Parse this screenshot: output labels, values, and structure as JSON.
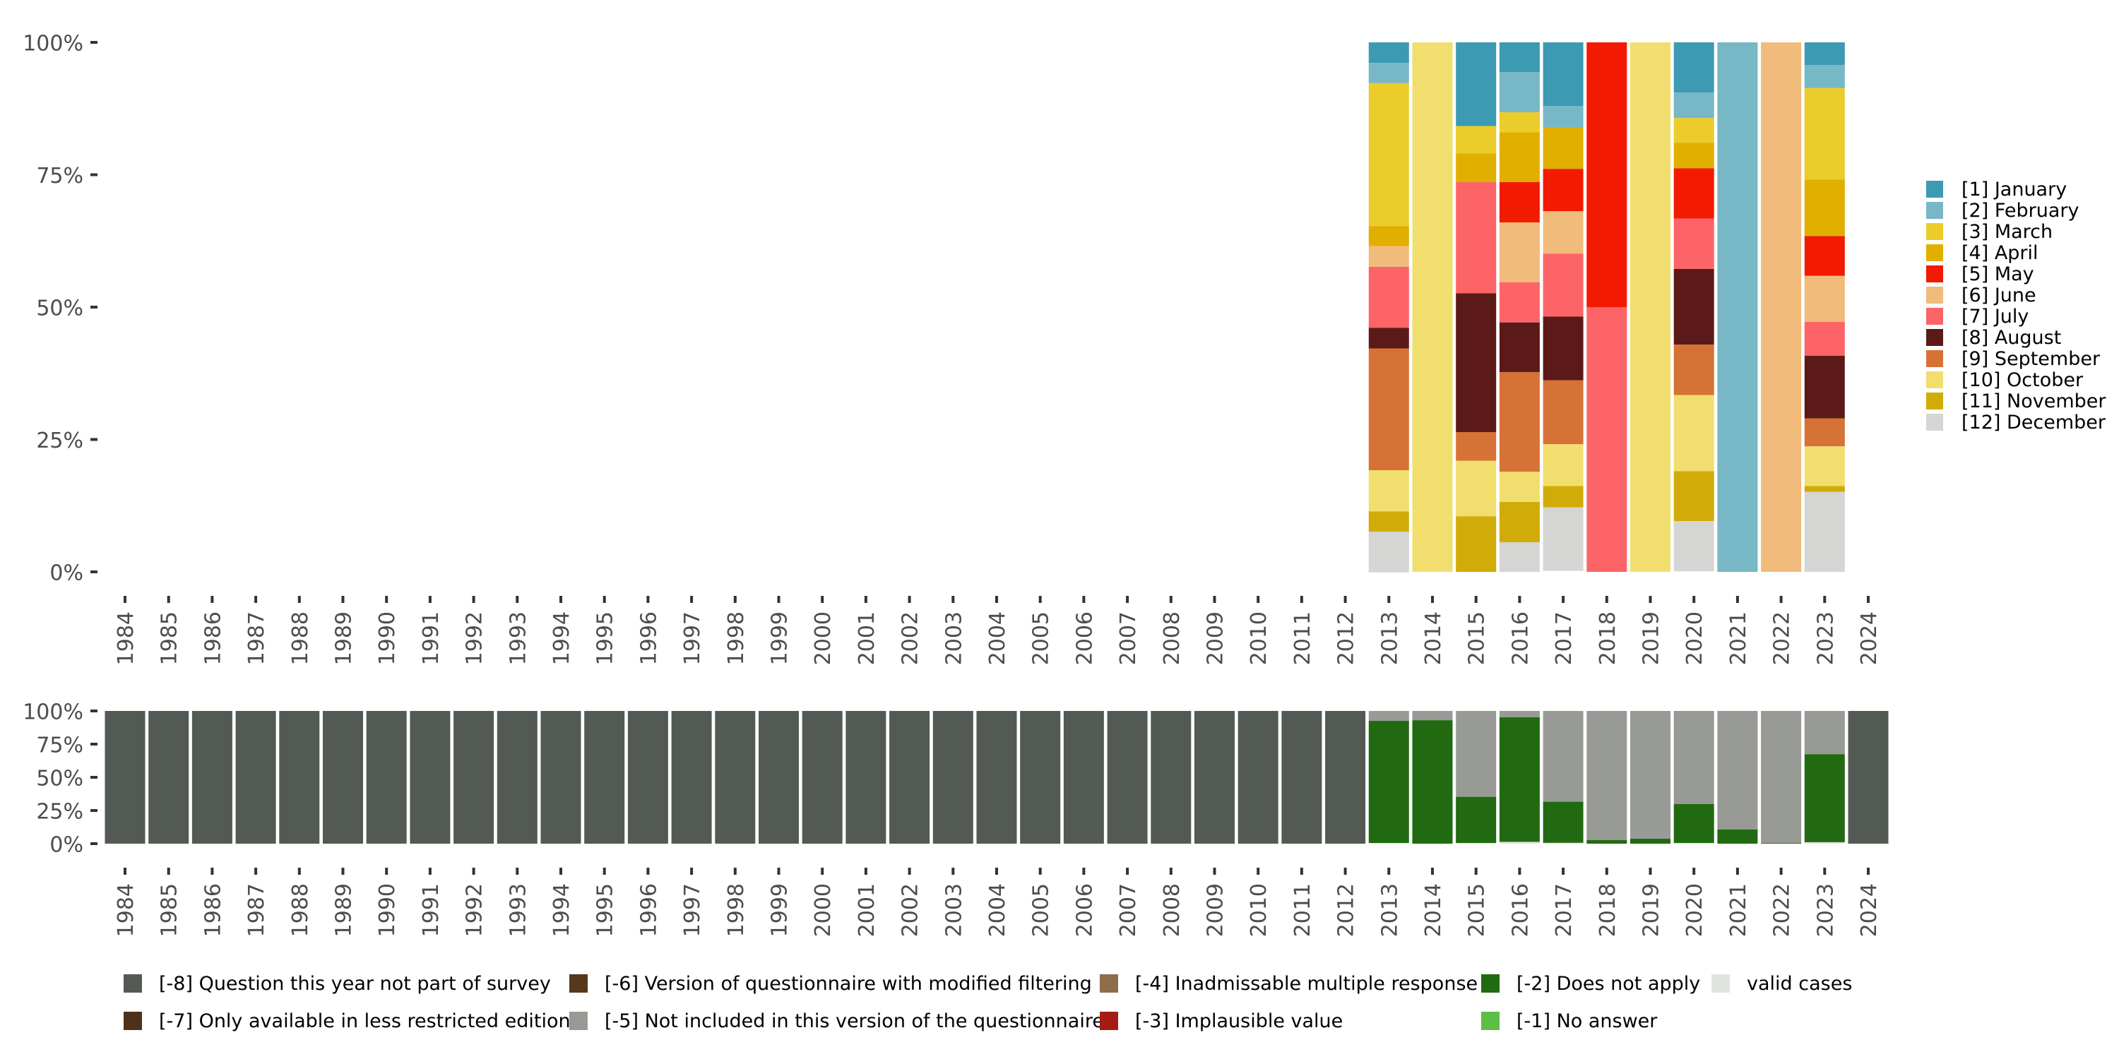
{
  "chart_data": [
    {
      "type": "bar",
      "stacked": true,
      "name": "month-distribution",
      "title": "",
      "xlabel": "",
      "ylabel": "",
      "ylim": [
        0,
        1
      ],
      "y_ticks": [
        "0%",
        "25%",
        "50%",
        "75%",
        "100%"
      ],
      "y_tick_values": [
        0,
        0.25,
        0.5,
        0.75,
        1
      ],
      "categories": [
        "1984",
        "1985",
        "1986",
        "1987",
        "1988",
        "1989",
        "1990",
        "1991",
        "1992",
        "1993",
        "1994",
        "1995",
        "1996",
        "1997",
        "1998",
        "1999",
        "2000",
        "2001",
        "2002",
        "2003",
        "2004",
        "2005",
        "2006",
        "2007",
        "2008",
        "2009",
        "2010",
        "2011",
        "2012",
        "2013",
        "2014",
        "2015",
        "2016",
        "2017",
        "2018",
        "2019",
        "2020",
        "2021",
        "2022",
        "2023",
        "2024"
      ],
      "grid": false,
      "legend_position": "right",
      "series": [
        {
          "name": "[1] January",
          "color": "#3C9AB2",
          "values": {
            "2013": 3.9,
            "2015": 15.8,
            "2016": 5.6,
            "2017": 12.0,
            "2020": 9.5,
            "2023": 4.3
          }
        },
        {
          "name": "[2] February",
          "color": "#78B7C5",
          "values": {
            "2013": 3.8,
            "2016": 7.6,
            "2017": 4.0,
            "2020": 4.8,
            "2021": 100,
            "2023": 4.3
          }
        },
        {
          "name": "[3] March",
          "color": "#EBCC2A",
          "values": {
            "2013": 27.0,
            "2015": 5.2,
            "2016": 3.8,
            "2020": 4.7,
            "2023": 17.3
          }
        },
        {
          "name": "[4] April",
          "color": "#E1AF00",
          "values": {
            "2013": 3.8,
            "2015": 5.4,
            "2016": 9.4,
            "2017": 7.9,
            "2020": 4.8,
            "2023": 10.7
          }
        },
        {
          "name": "[5] May",
          "color": "#F21A00",
          "values": {
            "2016": 7.6,
            "2017": 8.0,
            "2018": 50.0,
            "2020": 9.5,
            "2023": 7.5
          }
        },
        {
          "name": "[6] June",
          "color": "#F1BB7B",
          "values": {
            "2013": 3.9,
            "2016": 11.3,
            "2017": 8.0,
            "2022": 100,
            "2023": 8.7
          }
        },
        {
          "name": "[7] July",
          "color": "#FD6467",
          "values": {
            "2013": 11.5,
            "2015": 21.0,
            "2016": 7.6,
            "2017": 11.9,
            "2018": 50.0,
            "2020": 9.5,
            "2023": 6.4
          }
        },
        {
          "name": "[8] August",
          "color": "#5B1A18",
          "values": {
            "2013": 3.9,
            "2015": 26.2,
            "2016": 9.4,
            "2017": 12.0,
            "2020": 14.3,
            "2023": 11.8
          }
        },
        {
          "name": "[9] September",
          "color": "#D67236",
          "values": {
            "2013": 23.0,
            "2015": 5.4,
            "2016": 18.8,
            "2017": 12.1,
            "2020": 9.5,
            "2023": 5.3
          }
        },
        {
          "name": "[10] October",
          "color": "#F2DE6E",
          "values": {
            "2013": 7.8,
            "2014": 100,
            "2015": 10.5,
            "2016": 5.7,
            "2017": 7.9,
            "2019": 100,
            "2020": 14.4,
            "2023": 7.5
          }
        },
        {
          "name": "[11] November",
          "color": "#D1AB08",
          "values": {
            "2013": 3.8,
            "2015": 10.5,
            "2016": 7.6,
            "2017": 4.0,
            "2020": 9.4,
            "2023": 1.1
          }
        },
        {
          "name": "[12] December",
          "color": "#D5D5D3",
          "values": {
            "2013": 7.7,
            "2016": 5.6,
            "2017": 12.0,
            "2020": 9.5,
            "2023": 15.1
          }
        }
      ]
    },
    {
      "type": "bar",
      "stacked": true,
      "name": "missing-codes",
      "title": "",
      "xlabel": "",
      "ylabel": "",
      "ylim": [
        0,
        1
      ],
      "y_ticks": [
        "0%",
        "25%",
        "50%",
        "75%",
        "100%"
      ],
      "y_tick_values": [
        0,
        0.25,
        0.5,
        0.75,
        1
      ],
      "categories": [
        "1984",
        "1985",
        "1986",
        "1987",
        "1988",
        "1989",
        "1990",
        "1991",
        "1992",
        "1993",
        "1994",
        "1995",
        "1996",
        "1997",
        "1998",
        "1999",
        "2000",
        "2001",
        "2002",
        "2003",
        "2004",
        "2005",
        "2006",
        "2007",
        "2008",
        "2009",
        "2010",
        "2011",
        "2012",
        "2013",
        "2014",
        "2015",
        "2016",
        "2017",
        "2018",
        "2019",
        "2020",
        "2021",
        "2022",
        "2023",
        "2024"
      ],
      "grid": false,
      "legend_position": "bottom",
      "series": [
        {
          "name": "[-8] Question this year not part of survey",
          "color": "#535A53",
          "values": {
            "1984": 100,
            "1985": 100,
            "1986": 100,
            "1987": 100,
            "1988": 100,
            "1989": 100,
            "1990": 100,
            "1991": 100,
            "1992": 100,
            "1993": 100,
            "1994": 100,
            "1995": 100,
            "1996": 100,
            "1997": 100,
            "1998": 100,
            "1999": 100,
            "2000": 100,
            "2001": 100,
            "2002": 100,
            "2003": 100,
            "2004": 100,
            "2005": 100,
            "2006": 100,
            "2007": 100,
            "2008": 100,
            "2009": 100,
            "2010": 100,
            "2011": 100,
            "2012": 100,
            "2024": 100
          }
        },
        {
          "name": "[-7] Only available in less restricted edition",
          "color": "#4F3119",
          "values": {}
        },
        {
          "name": "[-6] Version of questionnaire with modified filtering",
          "color": "#55391A",
          "values": {}
        },
        {
          "name": "[-5] Not included in this version of the questionnaire",
          "color": "#989B95",
          "values": {
            "2013": 7.5,
            "2014": 7.0,
            "2015": 64.7,
            "2016": 4.8,
            "2017": 68.4,
            "2018": 97.3,
            "2019": 96.3,
            "2020": 70.1,
            "2021": 89.3,
            "2022": 99.5,
            "2023": 32.6
          }
        },
        {
          "name": "[-4] Inadmissable multiple response",
          "color": "#8F6D4A",
          "values": {}
        },
        {
          "name": "[-3] Implausible value",
          "color": "#A41B16",
          "values": {}
        },
        {
          "name": "[-2] Does not apply",
          "color": "#216A11",
          "values": {
            "2013": 92.0,
            "2014": 93.0,
            "2015": 34.8,
            "2016": 93.6,
            "2017": 31.0,
            "2018": 2.7,
            "2019": 3.7,
            "2020": 29.4,
            "2021": 10.7,
            "2022": 0.5,
            "2023": 66.3
          }
        },
        {
          "name": "[-1] No answer",
          "color": "#5CBF45",
          "values": {
            "2016": 0.5
          }
        },
        {
          "name": "valid cases",
          "color": "#E1E3E0",
          "values": {
            "2013": 0.5,
            "2015": 0.5,
            "2016": 1.1,
            "2017": 0.6,
            "2020": 0.5,
            "2023": 1.1
          }
        }
      ],
      "legend_order": [
        "[-8] Question this year not part of survey",
        "[-6] Version of questionnaire with modified filtering",
        "[-4] Inadmissable multiple response",
        "[-2] Does not apply",
        "valid cases",
        "[-7] Only available in less restricted edition",
        "[-5] Not included in this version of the questionnaire",
        "[-3] Implausible value",
        "[-1] No answer"
      ]
    }
  ]
}
